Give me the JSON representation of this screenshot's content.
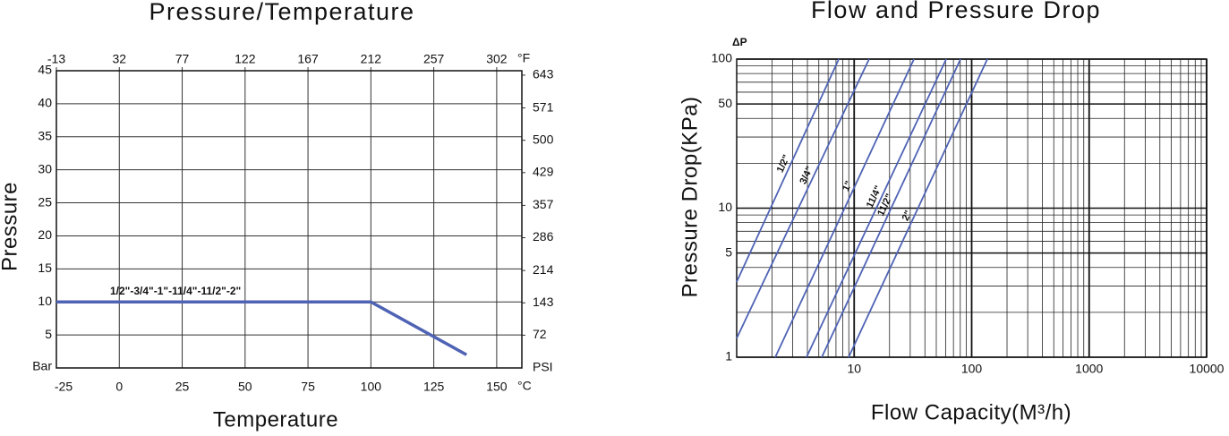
{
  "chart_data": [
    {
      "type": "line",
      "title": "Pressure/Temperature",
      "x_label": "Temperature",
      "y_label": "Pressure",
      "x_unit": "°C",
      "x2_unit": "°F",
      "y_unit": "Bar",
      "y2_unit": "PSI",
      "x": [
        -25,
        100,
        138
      ],
      "series": [
        {
          "name": "1/2\"-3/4\"-1\"-11/4\"-11/2\"-2\"",
          "color": "#4f63b5",
          "label_color": "#9c3f14",
          "values": [
            10,
            10,
            2
          ]
        }
      ],
      "xlim": [
        -25,
        160
      ],
      "xticks": [
        -25,
        0,
        25,
        50,
        75,
        100,
        125,
        150
      ],
      "x2lim": [
        -13,
        320
      ],
      "x2ticks": [
        -13,
        32,
        77,
        122,
        167,
        212,
        257,
        302
      ],
      "ylim": [
        0,
        45
      ],
      "yticks": [
        5,
        10,
        15,
        20,
        25,
        30,
        35,
        40,
        45
      ],
      "y2lim": [
        0,
        652.7
      ],
      "y2ticks": [
        72,
        143,
        214,
        286,
        357,
        429,
        500,
        571,
        643
      ],
      "grid": true
    },
    {
      "type": "loglog",
      "title": "Flow and Pressure Drop",
      "x_label": "Flow Capacity(M³/h)",
      "y_label": "Pressure Drop(KPa)",
      "y_unit": "ΔP",
      "log_x": true,
      "log_y": true,
      "series": [
        {
          "name": "1/2\"",
          "color": "#4f63b5",
          "label_color": "#9c3f14",
          "x": [
            1,
            7.4
          ],
          "values": [
            3.2,
            100
          ]
        },
        {
          "name": "3/4\"",
          "color": "#4f63b5",
          "label_color": "#9c3f14",
          "x": [
            1,
            13.4
          ],
          "values": [
            1.34,
            100
          ]
        },
        {
          "name": "1\"",
          "color": "#4f63b5",
          "label_color": "#9c3f14",
          "x": [
            2.13,
            32.3
          ],
          "values": [
            1,
            100
          ]
        },
        {
          "name": "11/4\"",
          "color": "#4f63b5",
          "label_color": "#9c3f14",
          "x": [
            3.93,
            60.7
          ],
          "values": [
            1,
            100
          ]
        },
        {
          "name": "11/2\"",
          "color": "#4f63b5",
          "label_color": "#9c3f14",
          "x": [
            5.3,
            80.4
          ],
          "values": [
            1,
            100
          ]
        },
        {
          "name": "2\"",
          "color": "#4f63b5",
          "label_color": "#9c3f14",
          "x": [
            8.97,
            136
          ],
          "values": [
            1,
            100
          ]
        }
      ],
      "xlim": [
        1,
        10000
      ],
      "xticks": [
        10,
        100,
        1000,
        10000
      ],
      "x_minor_ticks": [
        2,
        3,
        4,
        5,
        6,
        7,
        8,
        9,
        20,
        30,
        40,
        50,
        60,
        70,
        80,
        90,
        200,
        300,
        400,
        500,
        600,
        700,
        800,
        900,
        2000,
        3000,
        4000,
        5000,
        6000,
        7000,
        8000,
        9000
      ],
      "ylim": [
        1,
        100
      ],
      "yticks": [
        1,
        5,
        10,
        50,
        100
      ],
      "y_minor_ticks": [
        2,
        3,
        4,
        6,
        7,
        8,
        9,
        20,
        30,
        40,
        60,
        70,
        80,
        90
      ],
      "grid": true
    }
  ]
}
